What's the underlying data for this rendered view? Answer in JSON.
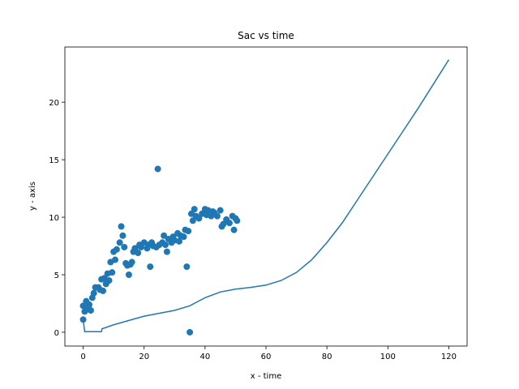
{
  "chart_data": {
    "type": "scatter",
    "title": "Sac vs time",
    "x_label": "x - time",
    "y_label": "y - axis",
    "xlim": [
      -6,
      126
    ],
    "ylim": [
      -1.2,
      24.8
    ],
    "xticks": [
      0,
      20,
      40,
      60,
      80,
      100,
      120
    ],
    "yticks": [
      0,
      5,
      10,
      15,
      20
    ],
    "series": [
      {
        "type": "scatter",
        "color": "#1f77b4",
        "x": [
          0,
          0,
          0.5,
          1,
          1.5,
          2,
          2.5,
          3,
          3.5,
          4,
          5,
          5.5,
          6,
          6.5,
          7,
          7.5,
          8,
          8.5,
          9,
          9.5,
          10,
          10.5,
          11,
          12,
          12.5,
          13,
          13.5,
          14,
          14.5,
          15,
          15.5,
          16,
          16.5,
          17,
          18,
          18.5,
          19,
          20,
          21,
          21.5,
          22,
          22.5,
          23,
          24,
          24.5,
          25,
          26,
          26.5,
          27,
          27.5,
          28,
          29,
          29.5,
          30,
          31,
          31.5,
          32,
          33,
          33.5,
          34,
          34.5,
          35,
          35.5,
          36,
          36.5,
          37,
          38,
          39,
          40,
          40.5,
          41,
          42,
          42.5,
          43,
          44,
          45,
          45.5,
          46,
          47,
          48,
          49,
          49.5,
          50,
          50.5
        ],
        "values": [
          1.1,
          2.3,
          1.8,
          2.7,
          2.0,
          2.4,
          1.9,
          3.0,
          3.4,
          3.9,
          3.9,
          3.7,
          4.6,
          3.6,
          4.7,
          4.2,
          5.1,
          4.5,
          6.1,
          5.2,
          7.0,
          6.3,
          7.2,
          7.8,
          9.2,
          8.4,
          7.4,
          6.0,
          5.8,
          5.0,
          5.9,
          6.1,
          7.0,
          7.3,
          6.9,
          7.6,
          7.4,
          7.8,
          7.3,
          7.6,
          5.7,
          7.8,
          7.5,
          7.4,
          14.2,
          7.6,
          7.8,
          8.4,
          7.6,
          7.0,
          8.1,
          7.8,
          8.3,
          8.0,
          8.6,
          7.9,
          8.4,
          8.3,
          8.9,
          5.7,
          8.8,
          0,
          10.3,
          9.7,
          10.7,
          10.1,
          9.9,
          10.3,
          10.7,
          10.2,
          10.6,
          10.1,
          10.5,
          10.4,
          10.1,
          10.6,
          9.2,
          9.4,
          9.8,
          9.5,
          10.1,
          8.9,
          9.9,
          9.7
        ]
      },
      {
        "type": "line",
        "color": "#1f77b4",
        "x": [
          0,
          0.5,
          6,
          6.2,
          10,
          20,
          30,
          35,
          40,
          45,
          50,
          55,
          60,
          65,
          70,
          75,
          80,
          85,
          90,
          95,
          100,
          105,
          110,
          115,
          120
        ],
        "values": [
          1.1,
          0.05,
          0.05,
          0.3,
          0.65,
          1.4,
          1.9,
          2.3,
          3.0,
          3.5,
          3.75,
          3.9,
          4.1,
          4.5,
          5.2,
          6.3,
          7.8,
          9.5,
          11.5,
          13.5,
          15.5,
          17.5,
          19.5,
          21.6,
          23.7
        ]
      }
    ]
  }
}
